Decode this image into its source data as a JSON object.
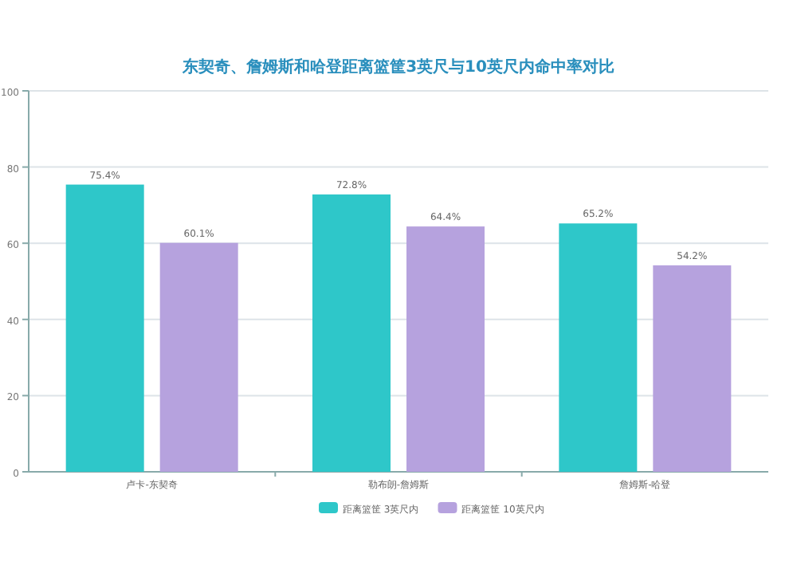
{
  "chart_data": {
    "type": "bar",
    "title": "东契奇、詹姆斯和哈登距离篮筐3英尺与10英尺内命中率对比",
    "categories": [
      "卢卡-东契奇",
      "勒布朗-詹姆斯",
      "詹姆斯-哈登"
    ],
    "series": [
      {
        "name": "距离篮筐 3英尺内",
        "color": "#2ec7c9",
        "values": [
          75.4,
          72.8,
          65.2
        ],
        "value_labels": [
          "75.4%",
          "72.8%",
          "65.2%"
        ]
      },
      {
        "name": "距离篮筐 10英尺内",
        "color": "#b6a2de",
        "values": [
          60.1,
          64.4,
          54.2
        ],
        "value_labels": [
          "60.1%",
          "64.4%",
          "54.2%"
        ]
      }
    ],
    "ylim": [
      0,
      100
    ],
    "yticks": [
      0,
      20,
      40,
      60,
      80,
      100
    ],
    "grid": "y",
    "legend": "bottom"
  }
}
